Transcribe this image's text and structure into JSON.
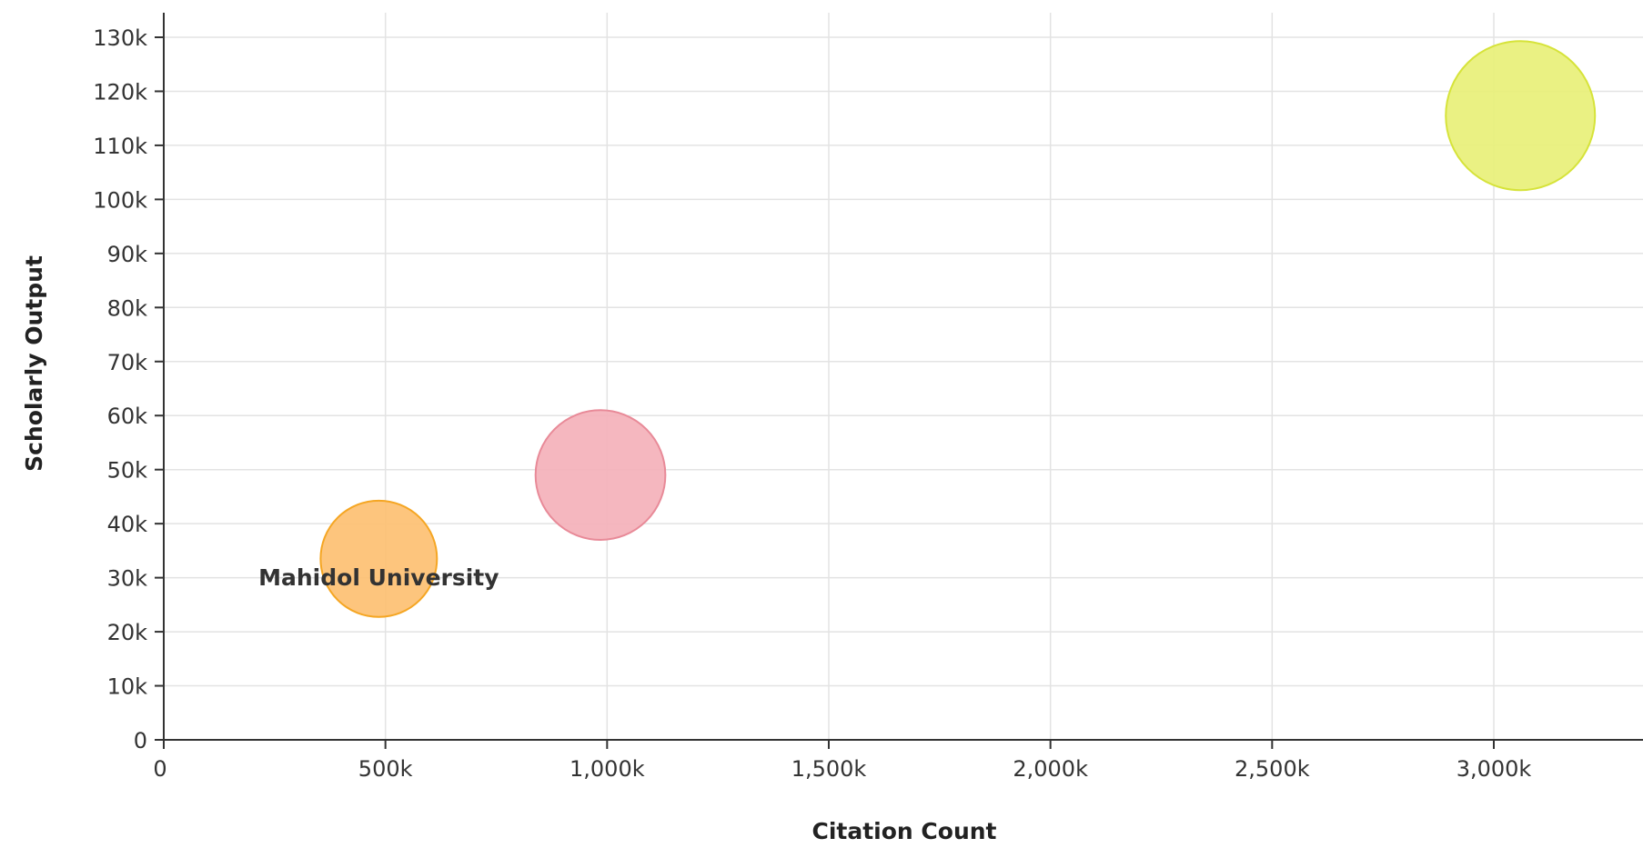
{
  "chart_data": {
    "type": "bubble",
    "title": "",
    "xlabel": "Citation Count",
    "ylabel": "Scholarly Output",
    "xlim": [
      0,
      3300000
    ],
    "ylim": [
      0,
      135000
    ],
    "x_ticks": [
      0,
      500000,
      1000000,
      1500000,
      2000000,
      2500000,
      3000000
    ],
    "x_tick_labels": [
      "0",
      "500k",
      "1,000k",
      "1,500k",
      "2,000k",
      "2,500k",
      "3,000k"
    ],
    "y_ticks": [
      0,
      10000,
      20000,
      30000,
      40000,
      50000,
      60000,
      70000,
      80000,
      90000,
      100000,
      110000,
      120000,
      130000
    ],
    "y_tick_labels": [
      "0",
      "10k",
      "20k",
      "30k",
      "40k",
      "50k",
      "60k",
      "70k",
      "80k",
      "90k",
      "100k",
      "110k",
      "120k",
      "130k"
    ],
    "grid": true,
    "legend": "none",
    "points": [
      {
        "name": "Mahidol University",
        "label": "Mahidol University",
        "x": 485000,
        "y": 33500,
        "size": 0.78,
        "color": "#FDBF6F",
        "stroke": "#F5A623"
      },
      {
        "name": "",
        "label": "",
        "x": 985000,
        "y": 49000,
        "size": 0.87,
        "color": "#F4AFB8",
        "stroke": "#E88A98"
      },
      {
        "name": "",
        "label": "",
        "x": 3060000,
        "y": 115500,
        "size": 1.0,
        "color": "#E8F076",
        "stroke": "#D6E33A"
      }
    ]
  }
}
